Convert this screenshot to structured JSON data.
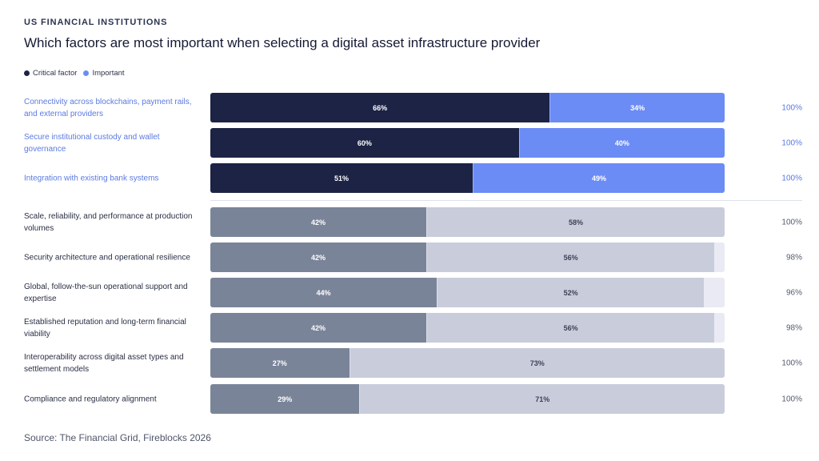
{
  "header": {
    "eyebrow": "US FINANCIAL INSTITUTIONS",
    "title": "Which factors are most important when selecting a digital asset infrastructure provider"
  },
  "legend": {
    "critical": "Critical factor",
    "important": "Important"
  },
  "colors": {
    "critical_top": "#1c2345",
    "important_top": "#6b8cf5",
    "critical_rest": "#7a8499",
    "important_rest": "#c9ccdb",
    "track": "#e9eaf4"
  },
  "chart_data": {
    "type": "bar",
    "orientation": "horizontal",
    "stacked": true,
    "series_names": [
      "Critical factor",
      "Important"
    ],
    "rows": [
      {
        "label": "Connectivity across blockchains, payment rails, and external providers",
        "critical": 66,
        "important": 34,
        "total": "100%",
        "group": "top"
      },
      {
        "label": "Secure institutional custody and wallet governance",
        "critical": 60,
        "important": 40,
        "total": "100%",
        "group": "top"
      },
      {
        "label": "Integration with existing bank systems",
        "critical": 51,
        "important": 49,
        "total": "100%",
        "group": "top"
      },
      {
        "label": "Scale, reliability, and performance at production volumes",
        "critical": 42,
        "important": 58,
        "total": "100%",
        "group": "bottom"
      },
      {
        "label": "Security architecture and operational resilience",
        "critical": 42,
        "important": 56,
        "total": "98%",
        "group": "bottom"
      },
      {
        "label": "Global, follow-the-sun operational support and expertise",
        "critical": 44,
        "important": 52,
        "total": "96%",
        "group": "bottom"
      },
      {
        "label": "Established reputation and long-term financial viability",
        "critical": 42,
        "important": 56,
        "total": "98%",
        "group": "bottom"
      },
      {
        "label": "Interoperability across digital asset types and settlement models",
        "critical": 27,
        "important": 73,
        "total": "100%",
        "group": "bottom"
      },
      {
        "label": "Compliance and regulatory alignment",
        "critical": 29,
        "important": 71,
        "total": "100%",
        "group": "bottom"
      }
    ],
    "xlim": [
      0,
      100
    ]
  },
  "footer": {
    "source": "Source: The Financial Grid, Fireblocks 2026"
  }
}
